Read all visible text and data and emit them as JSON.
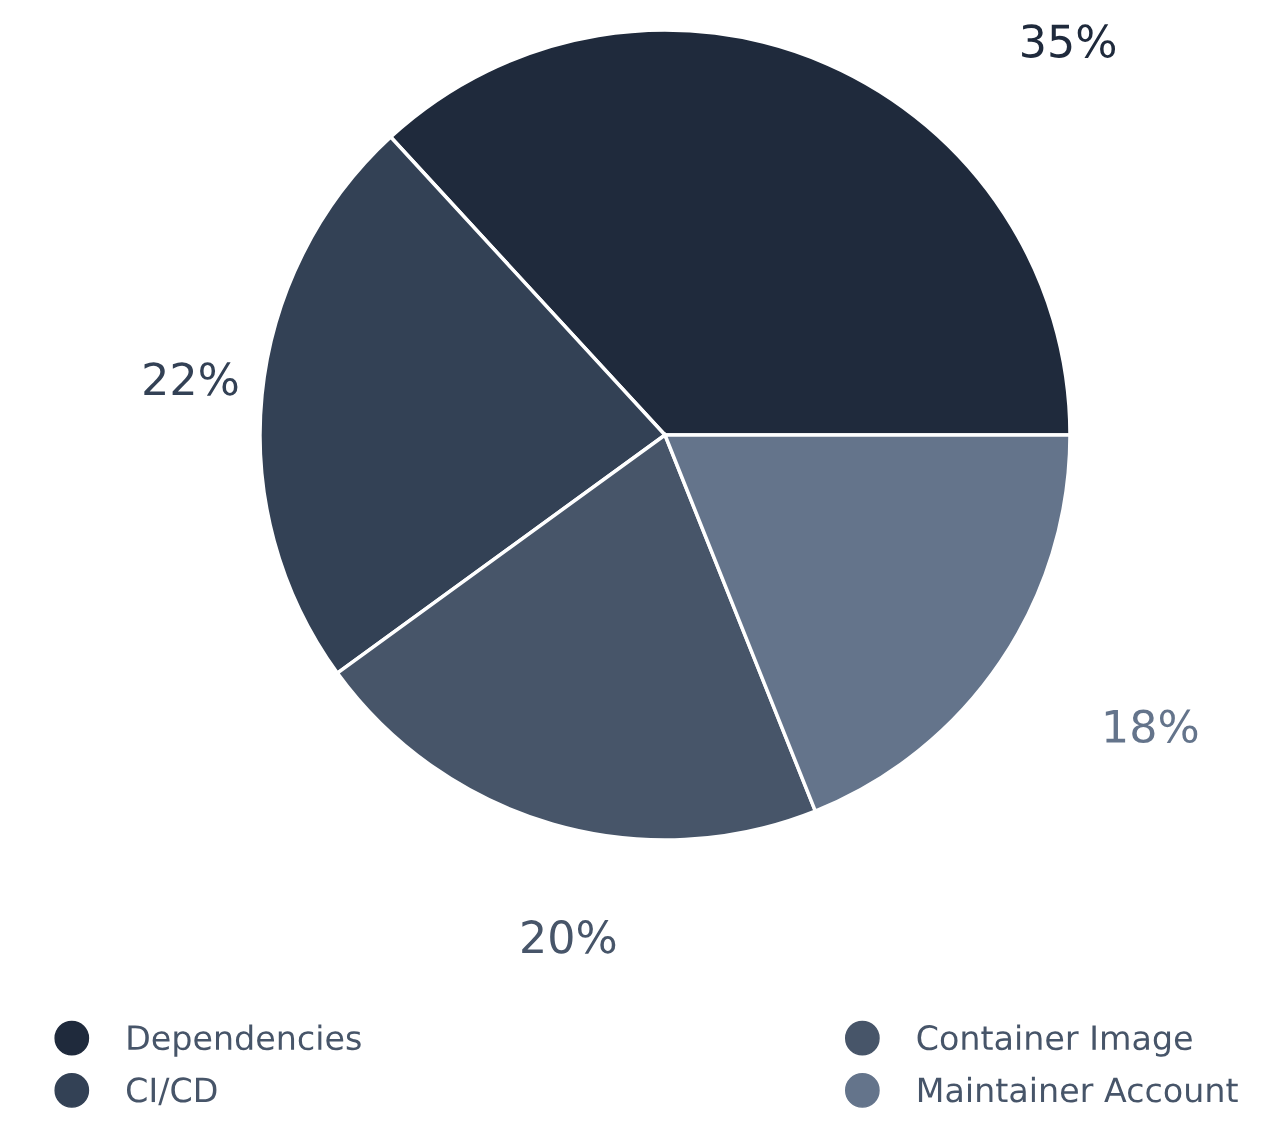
{
  "chart_data": {
    "type": "pie",
    "categories": [
      "Dependencies",
      "CI/CD",
      "Container Image",
      "Maintainer Account"
    ],
    "values": [
      35,
      22,
      20,
      18
    ],
    "colors": [
      "#1f2a3c",
      "#334155",
      "#475569",
      "#64748b"
    ],
    "value_labels": [
      "35%",
      "22%",
      "20%",
      "18%"
    ],
    "legend": "bottom"
  }
}
